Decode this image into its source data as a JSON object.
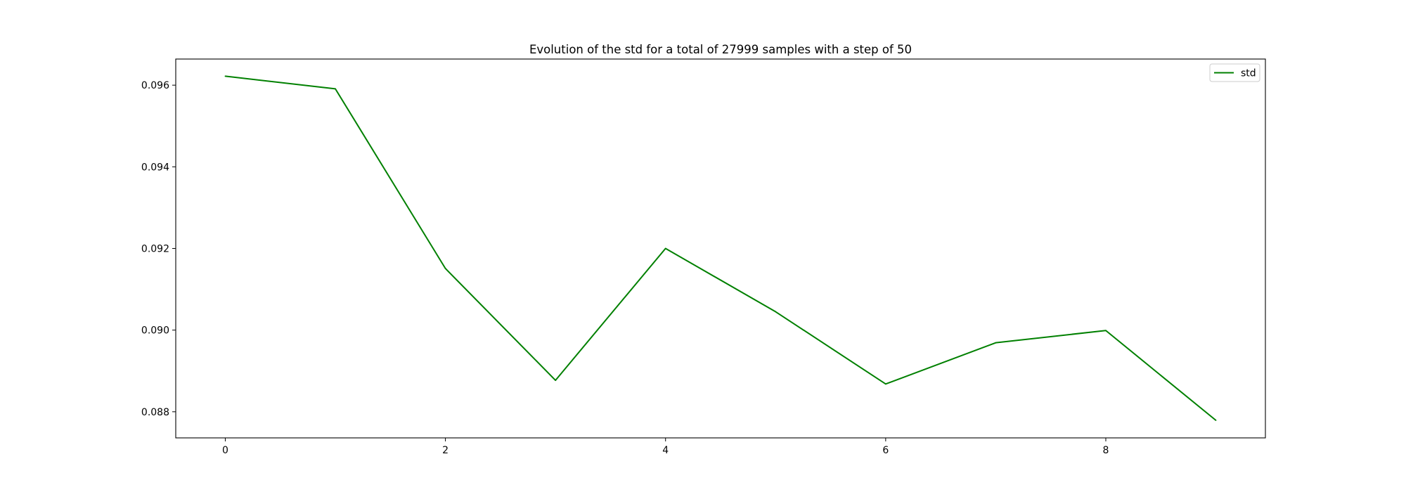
{
  "chart_data": {
    "type": "line",
    "title": "Evolution of the std for a total of 27999 samples with a step of 50",
    "xlabel": "",
    "ylabel": "",
    "x": [
      0,
      1,
      2,
      3,
      4,
      5,
      6,
      7,
      8,
      9
    ],
    "series": [
      {
        "name": "std",
        "color": "#008000",
        "values": [
          0.09622,
          0.09591,
          0.09151,
          0.08877,
          0.092,
          0.09045,
          0.08868,
          0.08969,
          0.08999,
          0.08779
        ]
      }
    ],
    "xlim": [
      -0.45,
      9.45
    ],
    "ylim": [
      0.08736,
      0.09664
    ],
    "xticks": [
      0,
      2,
      4,
      6,
      8
    ],
    "xtick_labels": [
      "0",
      "2",
      "4",
      "6",
      "8"
    ],
    "yticks": [
      0.088,
      0.09,
      0.092,
      0.094,
      0.096
    ],
    "ytick_labels": [
      "0.088",
      "0.090",
      "0.092",
      "0.094",
      "0.096"
    ],
    "grid": false,
    "legend_position": "top-right"
  }
}
